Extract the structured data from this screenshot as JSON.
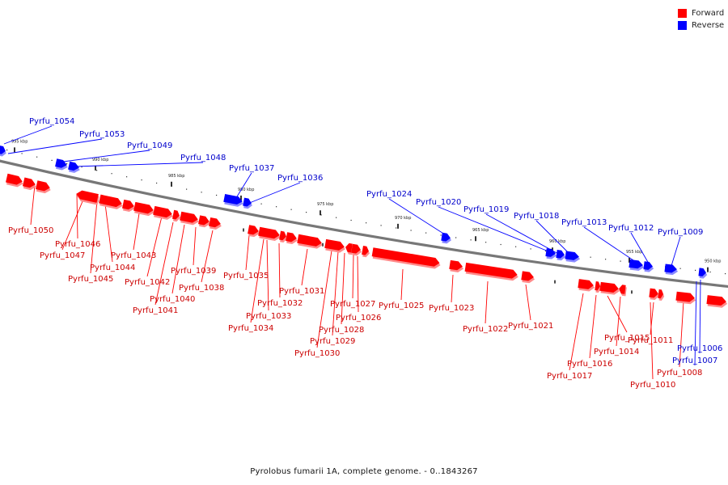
{
  "legend": [
    {
      "label": "Forward",
      "color": "#ff0000"
    },
    {
      "label": "Reverse",
      "color": "#0000ff"
    }
  ],
  "caption": "Pyrolobus fumarii 1A, complete genome. - 0..1843267",
  "ticks": [
    "995 kbp",
    "990 kbp",
    "985 kbp",
    "980 kbp",
    "975 kbp",
    "970 kbp",
    "965 kbp",
    "960 kbp",
    "955 kbp",
    "950 kbp"
  ],
  "genes": [
    {
      "name": "Pyrfu_1054",
      "strand": "reverse"
    },
    {
      "name": "Pyrfu_1053",
      "strand": "reverse"
    },
    {
      "name": "Pyrfu_1049",
      "strand": "reverse"
    },
    {
      "name": "Pyrfu_1048",
      "strand": "reverse"
    },
    {
      "name": "Pyrfu_1037",
      "strand": "reverse"
    },
    {
      "name": "Pyrfu_1036",
      "strand": "reverse"
    },
    {
      "name": "Pyrfu_1024",
      "strand": "reverse"
    },
    {
      "name": "Pyrfu_1020",
      "strand": "reverse"
    },
    {
      "name": "Pyrfu_1019",
      "strand": "reverse"
    },
    {
      "name": "Pyrfu_1018",
      "strand": "reverse"
    },
    {
      "name": "Pyrfu_1013",
      "strand": "reverse"
    },
    {
      "name": "Pyrfu_1012",
      "strand": "reverse"
    },
    {
      "name": "Pyrfu_1009",
      "strand": "reverse"
    },
    {
      "name": "Pyrfu_1006",
      "strand": "reverse"
    },
    {
      "name": "Pyrfu_1007",
      "strand": "reverse"
    },
    {
      "name": "Pyrfu_1050",
      "strand": "forward"
    },
    {
      "name": "Pyrfu_1046",
      "strand": "forward"
    },
    {
      "name": "Pyrfu_1047",
      "strand": "forward"
    },
    {
      "name": "Pyrfu_1044",
      "strand": "forward"
    },
    {
      "name": "Pyrfu_1045",
      "strand": "forward"
    },
    {
      "name": "Pyrfu_1043",
      "strand": "forward"
    },
    {
      "name": "Pyrfu_1042",
      "strand": "forward"
    },
    {
      "name": "Pyrfu_1039",
      "strand": "forward"
    },
    {
      "name": "Pyrfu_1040",
      "strand": "forward"
    },
    {
      "name": "Pyrfu_1038",
      "strand": "forward"
    },
    {
      "name": "Pyrfu_1041",
      "strand": "forward"
    },
    {
      "name": "Pyrfu_1035",
      "strand": "forward"
    },
    {
      "name": "Pyrfu_1032",
      "strand": "forward"
    },
    {
      "name": "Pyrfu_1033",
      "strand": "forward"
    },
    {
      "name": "Pyrfu_1034",
      "strand": "forward"
    },
    {
      "name": "Pyrfu_1031",
      "strand": "forward"
    },
    {
      "name": "Pyrfu_1027",
      "strand": "forward"
    },
    {
      "name": "Pyrfu_1026",
      "strand": "forward"
    },
    {
      "name": "Pyrfu_1028",
      "strand": "forward"
    },
    {
      "name": "Pyrfu_1029",
      "strand": "forward"
    },
    {
      "name": "Pyrfu_1030",
      "strand": "forward"
    },
    {
      "name": "Pyrfu_1025",
      "strand": "forward"
    },
    {
      "name": "Pyrfu_1023",
      "strand": "forward"
    },
    {
      "name": "Pyrfu_1022",
      "strand": "forward"
    },
    {
      "name": "Pyrfu_1021",
      "strand": "forward"
    },
    {
      "name": "Pyrfu_1015",
      "strand": "forward"
    },
    {
      "name": "Pyrfu_1014",
      "strand": "forward"
    },
    {
      "name": "Pyrfu_1016",
      "strand": "forward"
    },
    {
      "name": "Pyrfu_1017",
      "strand": "forward"
    },
    {
      "name": "Pyrfu_1011",
      "strand": "forward"
    },
    {
      "name": "Pyrfu_1010",
      "strand": "forward"
    },
    {
      "name": "Pyrfu_1008",
      "strand": "forward"
    }
  ]
}
